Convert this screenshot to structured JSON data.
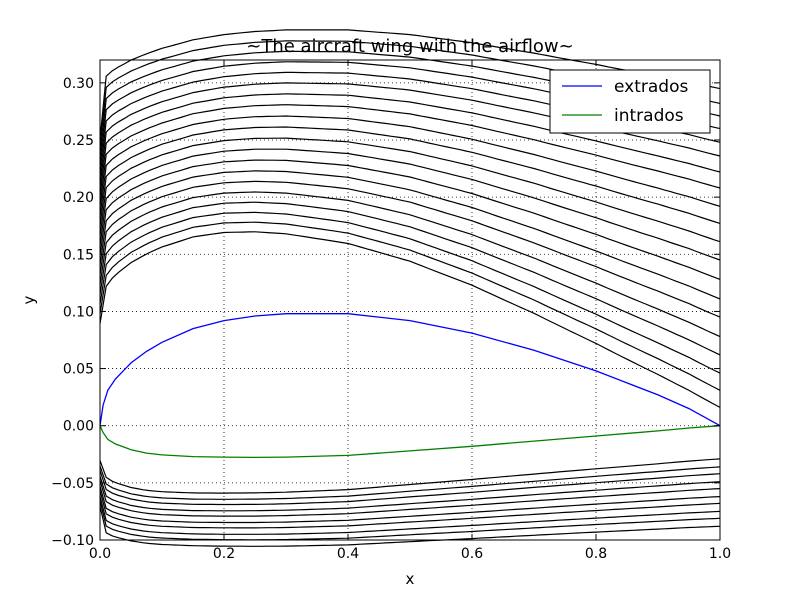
{
  "chart_data": {
    "type": "line",
    "title": "~The aircraft wing with the airflow~",
    "xlabel": "x",
    "ylabel": "y",
    "xlim": [
      0.0,
      1.0
    ],
    "ylim": [
      -0.1,
      0.32
    ],
    "grid": true,
    "legend_position": "top-right",
    "x_ticks": [
      0.0,
      0.2,
      0.4,
      0.6,
      0.8,
      1.0
    ],
    "x_tick_labels": [
      "0.0",
      "0.2",
      "0.4",
      "0.6",
      "0.8",
      "1.0"
    ],
    "y_ticks": [
      -0.1,
      -0.05,
      0.0,
      0.05,
      0.1,
      0.15,
      0.2,
      0.25,
      0.3
    ],
    "y_tick_labels": [
      "−0.10",
      "−0.05",
      "0.00",
      "0.05",
      "0.10",
      "0.15",
      "0.20",
      "0.25",
      "0.30"
    ],
    "series": [
      {
        "name": "extrados",
        "color": "#0000ff",
        "x": [
          0.0,
          0.005,
          0.0125,
          0.025,
          0.05,
          0.075,
          0.1,
          0.15,
          0.2,
          0.25,
          0.3,
          0.4,
          0.5,
          0.6,
          0.7,
          0.8,
          0.9,
          0.95,
          1.0
        ],
        "y": [
          0.0,
          0.018,
          0.031,
          0.041,
          0.055,
          0.065,
          0.073,
          0.085,
          0.092,
          0.096,
          0.098,
          0.098,
          0.092,
          0.081,
          0.066,
          0.048,
          0.027,
          0.015,
          0.0
        ]
      },
      {
        "name": "intrados",
        "color": "#008000",
        "x": [
          0.0,
          0.005,
          0.0125,
          0.025,
          0.05,
          0.075,
          0.1,
          0.15,
          0.2,
          0.25,
          0.3,
          0.4,
          0.5,
          0.6,
          0.7,
          0.8,
          0.9,
          0.95,
          1.0
        ],
        "y": [
          0.0,
          -0.006,
          -0.012,
          -0.016,
          -0.021,
          -0.024,
          -0.0255,
          -0.027,
          -0.0275,
          -0.0277,
          -0.0275,
          -0.026,
          -0.022,
          -0.018,
          -0.0135,
          -0.009,
          -0.0045,
          -0.002,
          0.0
        ]
      }
    ],
    "legend_entries": [
      "extrados",
      "intrados"
    ],
    "streamline_color": "#000000",
    "streamlines_upper": {
      "y_inf": [
        0.295,
        0.285,
        0.275,
        0.265,
        0.255,
        0.245,
        0.235,
        0.225,
        0.215,
        0.205,
        0.195,
        0.185,
        0.175,
        0.165,
        0.155,
        0.145,
        0.135,
        0.125,
        0.115,
        0.105
      ],
      "y_exit": [
        0.295,
        0.282,
        0.271,
        0.26,
        0.248,
        0.236,
        0.222,
        0.208,
        0.192,
        0.177,
        0.161,
        0.145,
        0.128,
        0.111,
        0.095,
        0.078,
        0.062,
        0.046,
        0.031,
        0.016
      ]
    },
    "streamlines_lower": {
      "y_inf": [
        -0.088,
        -0.082,
        -0.077,
        -0.071,
        -0.066,
        -0.06,
        -0.055,
        -0.049,
        -0.044,
        -0.038
      ],
      "y_exit": [
        -0.088,
        -0.081,
        -0.075,
        -0.068,
        -0.062,
        -0.055,
        -0.049,
        -0.042,
        -0.036,
        -0.029
      ]
    }
  }
}
